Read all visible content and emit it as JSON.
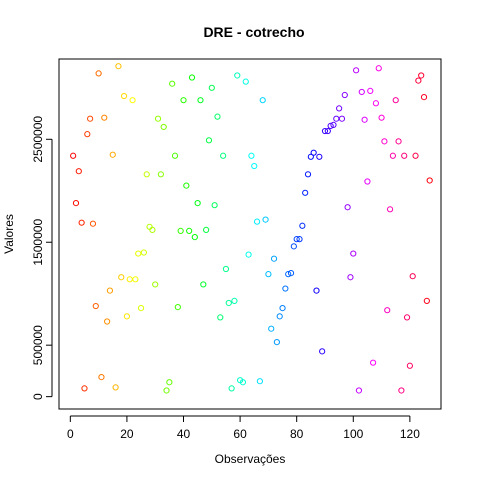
{
  "chart_data": {
    "type": "scatter",
    "title": "DRE - cotrecho",
    "xlabel": "Observações",
    "ylabel": "Valores",
    "xlim": [
      -4,
      131
    ],
    "ylim": [
      -120000,
      3280000
    ],
    "xticks": [
      0,
      20,
      40,
      60,
      80,
      100,
      120
    ],
    "xtick_labels": [
      "0",
      "20",
      "40",
      "60",
      "80",
      "100",
      "120"
    ],
    "yticks": [
      0,
      500000,
      1500000,
      2500000
    ],
    "ytick_labels": [
      "0",
      "500000",
      "1500000",
      "2500000"
    ],
    "grid": false,
    "legend": "none",
    "point_style": "open-circle",
    "color_scheme": "rainbow",
    "x": [
      1,
      2,
      3,
      4,
      5,
      6,
      7,
      8,
      9,
      10,
      11,
      12,
      13,
      14,
      15,
      16,
      17,
      18,
      19,
      20,
      21,
      22,
      23,
      24,
      25,
      26,
      27,
      28,
      29,
      30,
      31,
      32,
      33,
      34,
      35,
      36,
      37,
      38,
      39,
      40,
      41,
      42,
      43,
      44,
      45,
      46,
      47,
      48,
      49,
      50,
      51,
      52,
      53,
      54,
      55,
      56,
      57,
      58,
      59,
      60,
      61,
      62,
      63,
      64,
      65,
      66,
      67,
      68,
      69,
      70,
      71,
      72,
      73,
      74,
      75,
      76,
      77,
      78,
      79,
      80,
      81,
      82,
      83,
      84,
      85,
      86,
      87,
      88,
      89,
      90,
      91,
      92,
      93,
      94,
      95,
      96,
      97,
      98,
      99,
      100,
      101,
      102,
      103,
      104,
      105,
      106,
      107,
      108,
      109,
      110,
      111,
      112,
      113,
      114,
      115,
      116,
      117,
      118,
      119,
      120,
      121,
      122,
      123,
      124,
      125,
      126,
      127
    ],
    "y": [
      2340000,
      1880000,
      2190000,
      1690000,
      80000,
      2550000,
      2700000,
      1680000,
      880000,
      3140000,
      190000,
      2710000,
      730000,
      1030000,
      2350000,
      90000,
      3210000,
      1160000,
      2920000,
      780000,
      1140000,
      2880000,
      1140000,
      1390000,
      860000,
      1400000,
      2160000,
      1650000,
      1620000,
      1090000,
      2700000,
      2160000,
      2620000,
      60000,
      140000,
      3040000,
      2340000,
      870000,
      1610000,
      2880000,
      2050000,
      1610000,
      3100000,
      1550000,
      1880000,
      2880000,
      1090000,
      1620000,
      2490000,
      3000000,
      1860000,
      2720000,
      770000,
      2340000,
      1240000,
      910000,
      80000,
      930000,
      3120000,
      160000,
      140000,
      3060000,
      1380000,
      2340000,
      2240000,
      1700000,
      150000,
      2880000,
      1720000,
      1190000,
      660000,
      1340000,
      530000,
      780000,
      860000,
      1050000,
      1190000,
      1200000,
      1460000,
      1530000,
      1530000,
      1660000,
      1980000,
      2160000,
      2330000,
      2370000,
      1030000,
      2330000,
      440000,
      2580000,
      2580000,
      2630000,
      2640000,
      2700000,
      2800000,
      2700000,
      2930000,
      1840000,
      1160000,
      1390000,
      3170000,
      60000,
      2960000,
      2690000,
      2090000,
      2970000,
      330000,
      2850000,
      3190000,
      2710000,
      2480000,
      840000,
      1820000,
      2340000,
      2880000,
      2480000,
      60000,
      2340000,
      770000,
      300000,
      1170000,
      2340000,
      3070000,
      3120000,
      2910000,
      930000,
      2100000
    ]
  }
}
